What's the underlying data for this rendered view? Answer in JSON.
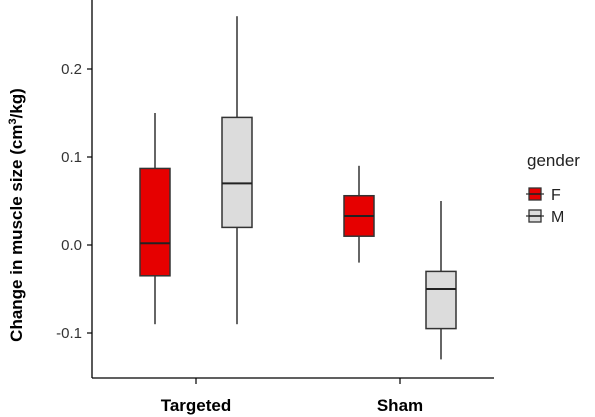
{
  "chart_data": {
    "type": "box",
    "ylabel_main": "Change in muscle size (cm",
    "ylabel_sup": "3",
    "ylabel_tail": "/kg)",
    "yticks": [
      "0.2",
      "0.1",
      "0.0",
      "-0.1"
    ],
    "ytick_values": [
      0.2,
      0.1,
      0.0,
      -0.1
    ],
    "ylim": [
      -0.15,
      0.28
    ],
    "categories": [
      "Targeted",
      "Sham"
    ],
    "legend": {
      "title": "gender",
      "placement": "right"
    },
    "series": [
      {
        "name": "F",
        "color": "#e60000",
        "boxes": [
          {
            "min": -0.09,
            "q1": -0.035,
            "median": 0.002,
            "q3": 0.087,
            "max": 0.15
          },
          {
            "min": -0.02,
            "q1": 0.01,
            "median": 0.033,
            "q3": 0.056,
            "max": 0.09
          }
        ]
      },
      {
        "name": "M",
        "color": "#dcdcdc",
        "boxes": [
          {
            "min": -0.09,
            "q1": 0.02,
            "median": 0.07,
            "q3": 0.145,
            "max": 0.26
          },
          {
            "min": -0.13,
            "q1": -0.095,
            "median": -0.05,
            "q3": -0.03,
            "max": 0.05
          }
        ]
      }
    ]
  }
}
